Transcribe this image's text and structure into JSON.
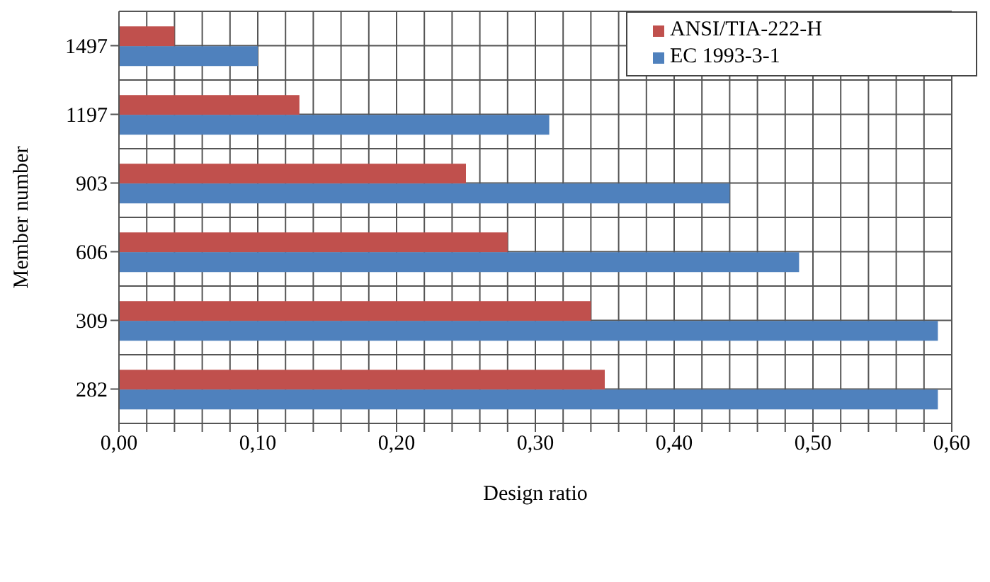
{
  "chart_data": {
    "type": "bar",
    "orientation": "horizontal",
    "xlabel": "Design ratio",
    "ylabel": "Member number",
    "categories": [
      "1497",
      "1197",
      "903",
      "606",
      "309",
      "282"
    ],
    "series": [
      {
        "name": "ANSI/TIA-222-H",
        "color": "#c0504d",
        "values": [
          0.04,
          0.13,
          0.25,
          0.28,
          0.34,
          0.35
        ]
      },
      {
        "name": "EC 1993-3-1",
        "color": "#4f81bd",
        "values": [
          0.1,
          0.31,
          0.44,
          0.49,
          0.59,
          0.59
        ]
      }
    ],
    "xlim": [
      0,
      0.6
    ],
    "xticks": [
      {
        "value": 0,
        "label": "0,00"
      },
      {
        "value": 0.02,
        "label": null
      },
      {
        "value": 0.04,
        "label": null
      },
      {
        "value": 0.06,
        "label": null
      },
      {
        "value": 0.08,
        "label": null
      },
      {
        "value": 0.1,
        "label": "0,10"
      },
      {
        "value": 0.12,
        "label": null
      },
      {
        "value": 0.14,
        "label": null
      },
      {
        "value": 0.16,
        "label": null
      },
      {
        "value": 0.18,
        "label": null
      },
      {
        "value": 0.2,
        "label": "0,20"
      },
      {
        "value": 0.22,
        "label": null
      },
      {
        "value": 0.24,
        "label": null
      },
      {
        "value": 0.26,
        "label": null
      },
      {
        "value": 0.28,
        "label": null
      },
      {
        "value": 0.3,
        "label": "0,30"
      },
      {
        "value": 0.32,
        "label": null
      },
      {
        "value": 0.34,
        "label": null
      },
      {
        "value": 0.36,
        "label": null
      },
      {
        "value": 0.38,
        "label": null
      },
      {
        "value": 0.4,
        "label": "0,40"
      },
      {
        "value": 0.42,
        "label": null
      },
      {
        "value": 0.44,
        "label": null
      },
      {
        "value": 0.46,
        "label": null
      },
      {
        "value": 0.48,
        "label": null
      },
      {
        "value": 0.5,
        "label": "0,50"
      },
      {
        "value": 0.52,
        "label": null
      },
      {
        "value": 0.54,
        "label": null
      },
      {
        "value": 0.56,
        "label": null
      },
      {
        "value": 0.58,
        "label": null
      },
      {
        "value": 0.6,
        "label": "0,60"
      }
    ],
    "grid": true,
    "legend": "top right"
  }
}
